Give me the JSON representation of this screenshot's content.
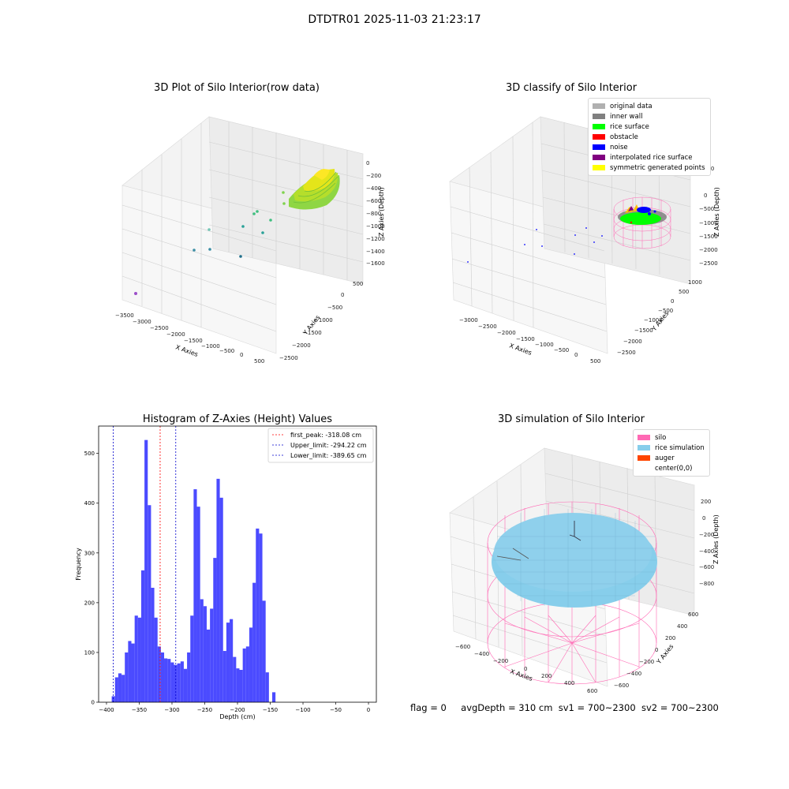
{
  "title": "DTDTR01 2025-11-03 21:23:17",
  "panels": {
    "raw": {
      "title": "3D Plot of Silo Interior(row data)",
      "xlabel": "X Axies",
      "ylabel": "Y Axies",
      "zlabel": "Z Axies (Depth)",
      "xticks": [
        "−3500",
        "−3000",
        "−2500",
        "−2000",
        "−1500",
        "−1000",
        "−500",
        "0",
        "500"
      ],
      "yticks": [
        "500",
        "0",
        "−500",
        "−1000",
        "−1500",
        "−2000",
        "−2500"
      ],
      "zticks": [
        "0",
        "−200",
        "−400",
        "−600",
        "−800",
        "−1000",
        "−1200",
        "−1400",
        "−1600"
      ]
    },
    "classify": {
      "title": "3D classify of Silo Interior",
      "xlabel": "X Axies",
      "ylabel": "Y Axies",
      "zlabel": "Z Axies (Depth)",
      "xticks": [
        "−3000",
        "−2500",
        "−2000",
        "−1500",
        "−1000",
        "−500",
        "0",
        "500"
      ],
      "yticks": [
        "1000",
        "500",
        "0",
        "−500",
        "−1000",
        "−1500",
        "−2000",
        "−2500"
      ],
      "zticks": [
        "500",
        "0",
        "−500",
        "−1000",
        "−1500",
        "−2000",
        "−2500"
      ],
      "legend": [
        {
          "label": "original data",
          "color": "#b0b0b0"
        },
        {
          "label": "inner wall",
          "color": "#808080"
        },
        {
          "label": "rice surface",
          "color": "#00ff00"
        },
        {
          "label": "obstacle",
          "color": "#ff0000"
        },
        {
          "label": "noise",
          "color": "#0000ff"
        },
        {
          "label": "interpolated rice surface",
          "color": "#800080"
        },
        {
          "label": "symmetric generated points",
          "color": "#ffff00"
        }
      ]
    },
    "simulation": {
      "title": "3D simulation of Silo Interior",
      "xlabel": "X Axies",
      "ylabel": "Y Axies",
      "zlabel": "Z Axies (Depth)",
      "xticks": [
        "−600",
        "−400",
        "−200",
        "0",
        "200",
        "400",
        "600"
      ],
      "yticks": [
        "600",
        "400",
        "200",
        "0",
        "−200",
        "−400",
        "−600"
      ],
      "zticks": [
        "200",
        "0",
        "−200",
        "−400",
        "−600",
        "−800"
      ],
      "legend": [
        {
          "label": "silo",
          "color": "#ff69b4"
        },
        {
          "label": "rice simulation",
          "color": "#87ceeb"
        },
        {
          "label": "auger",
          "color": "#ff4500"
        },
        {
          "label": "center(0,0)",
          "color": "#ffffff"
        }
      ]
    }
  },
  "chart_data": {
    "type": "bar",
    "title": "Histogram of Z-Axies (Height) Values",
    "xlabel": "Depth (cm)",
    "ylabel": "Frequency",
    "xlim": [
      -412,
      12
    ],
    "ylim": [
      0,
      555
    ],
    "xticks": [
      -400,
      -350,
      -300,
      -250,
      -200,
      -150,
      -100,
      -50,
      0
    ],
    "yticks": [
      0,
      100,
      200,
      300,
      400,
      500
    ],
    "bar_color": "#4b4bff",
    "bin_width": 5,
    "bins": [
      [
        -392,
        12
      ],
      [
        -387,
        50
      ],
      [
        -382,
        58
      ],
      [
        -377,
        55
      ],
      [
        -372,
        100
      ],
      [
        -367,
        123
      ],
      [
        -362,
        118
      ],
      [
        -357,
        174
      ],
      [
        -352,
        170
      ],
      [
        -347,
        265
      ],
      [
        -342,
        527
      ],
      [
        -337,
        396
      ],
      [
        -332,
        230
      ],
      [
        -327,
        170
      ],
      [
        -322,
        112
      ],
      [
        -317,
        100
      ],
      [
        -312,
        88
      ],
      [
        -307,
        87
      ],
      [
        -302,
        80
      ],
      [
        -297,
        75
      ],
      [
        -292,
        78
      ],
      [
        -287,
        82
      ],
      [
        -282,
        67
      ],
      [
        -277,
        100
      ],
      [
        -272,
        174
      ],
      [
        -267,
        428
      ],
      [
        -262,
        393
      ],
      [
        -257,
        207
      ],
      [
        -252,
        193
      ],
      [
        -247,
        146
      ],
      [
        -242,
        188
      ],
      [
        -237,
        290
      ],
      [
        -232,
        449
      ],
      [
        -227,
        411
      ],
      [
        -222,
        103
      ],
      [
        -217,
        160
      ],
      [
        -212,
        167
      ],
      [
        -207,
        91
      ],
      [
        -202,
        68
      ],
      [
        -197,
        65
      ],
      [
        -192,
        108
      ],
      [
        -187,
        112
      ],
      [
        -182,
        150
      ],
      [
        -177,
        240
      ],
      [
        -172,
        349
      ],
      [
        -167,
        339
      ],
      [
        -162,
        204
      ],
      [
        -157,
        60
      ],
      [
        -147,
        20
      ]
    ],
    "vlines": [
      {
        "label": "first_peak: -318.08 cm",
        "x": -318.08,
        "color": "#ff0000"
      },
      {
        "label": "Upper_limit: -294.22 cm",
        "x": -294.22,
        "color": "#0000cc"
      },
      {
        "label": "Lower_limit: -389.65 cm",
        "x": -389.65,
        "color": "#0000cc"
      }
    ]
  },
  "footer": {
    "flag": "flag = 0",
    "avg": "avgDepth = 310 cm",
    "sv1": "sv1 = 700~2300",
    "sv2": "sv2 = 700~2300"
  }
}
